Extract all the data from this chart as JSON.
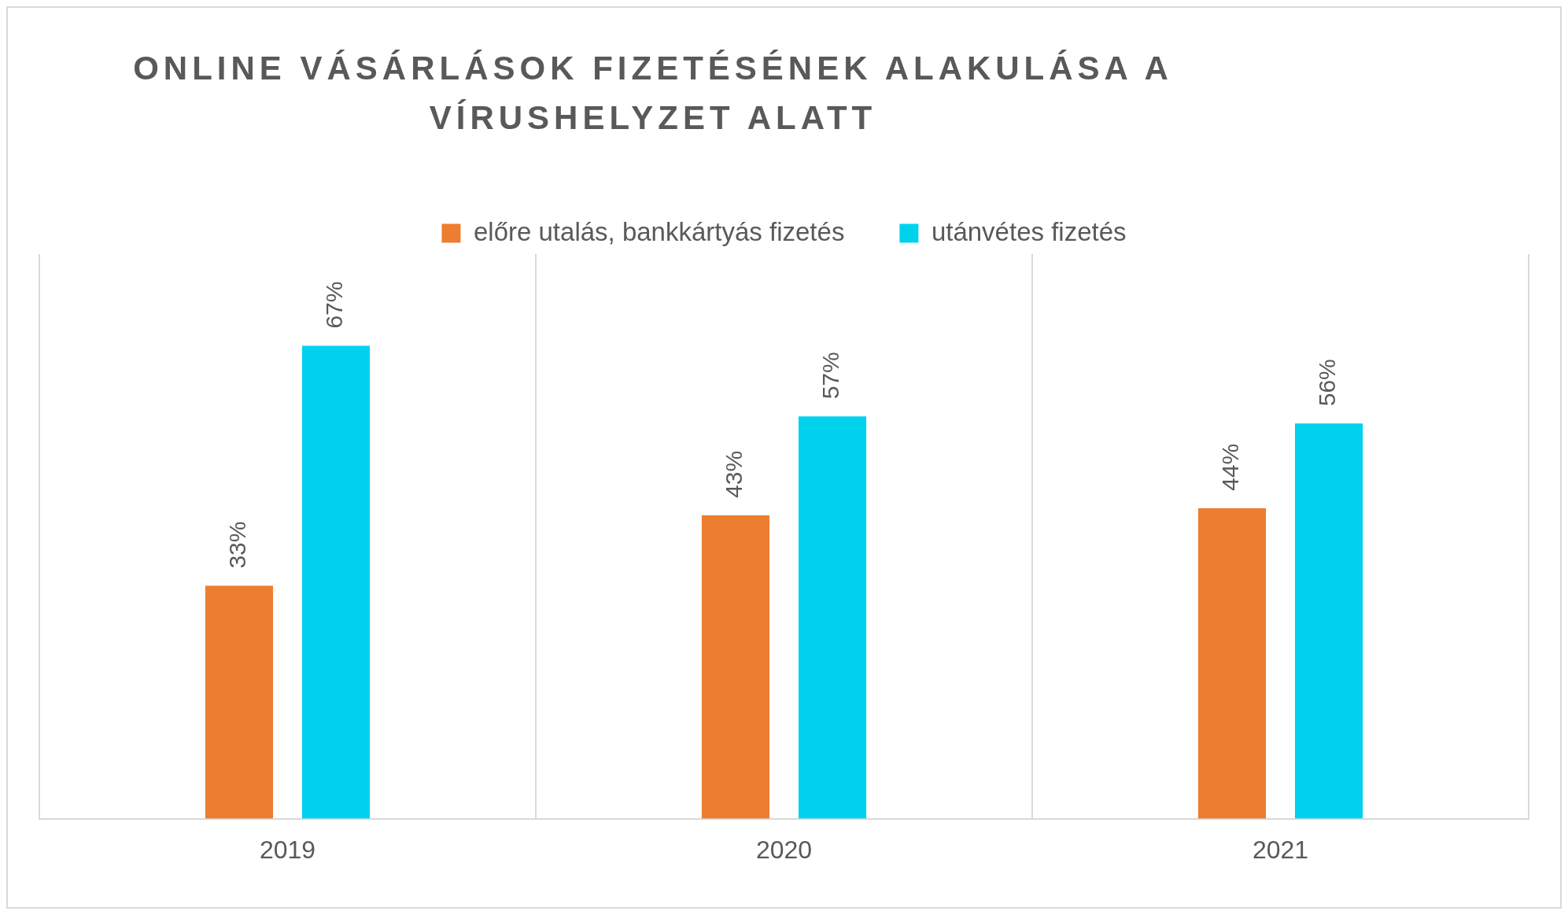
{
  "chart_data": {
    "type": "bar",
    "title": "ONLINE VÁSÁRLÁSOK FIZETÉSÉNEK ALAKULÁSA A VÍRUSHELYZET ALATT",
    "categories": [
      "2019",
      "2020",
      "2021"
    ],
    "series": [
      {
        "name": "előre utalás, bankkártyás fizetés",
        "color": "#ed7d31",
        "values": [
          33,
          43,
          44
        ],
        "value_labels": [
          "33%",
          "43%",
          "44%"
        ]
      },
      {
        "name": "utánvétes fizetés",
        "color": "#00d2ee",
        "values": [
          67,
          57,
          56
        ],
        "value_labels": [
          "67%",
          "57%",
          "56%"
        ]
      }
    ],
    "ylim": [
      0,
      80
    ],
    "tick_labels": "x",
    "grid": "x",
    "legend": "top"
  }
}
